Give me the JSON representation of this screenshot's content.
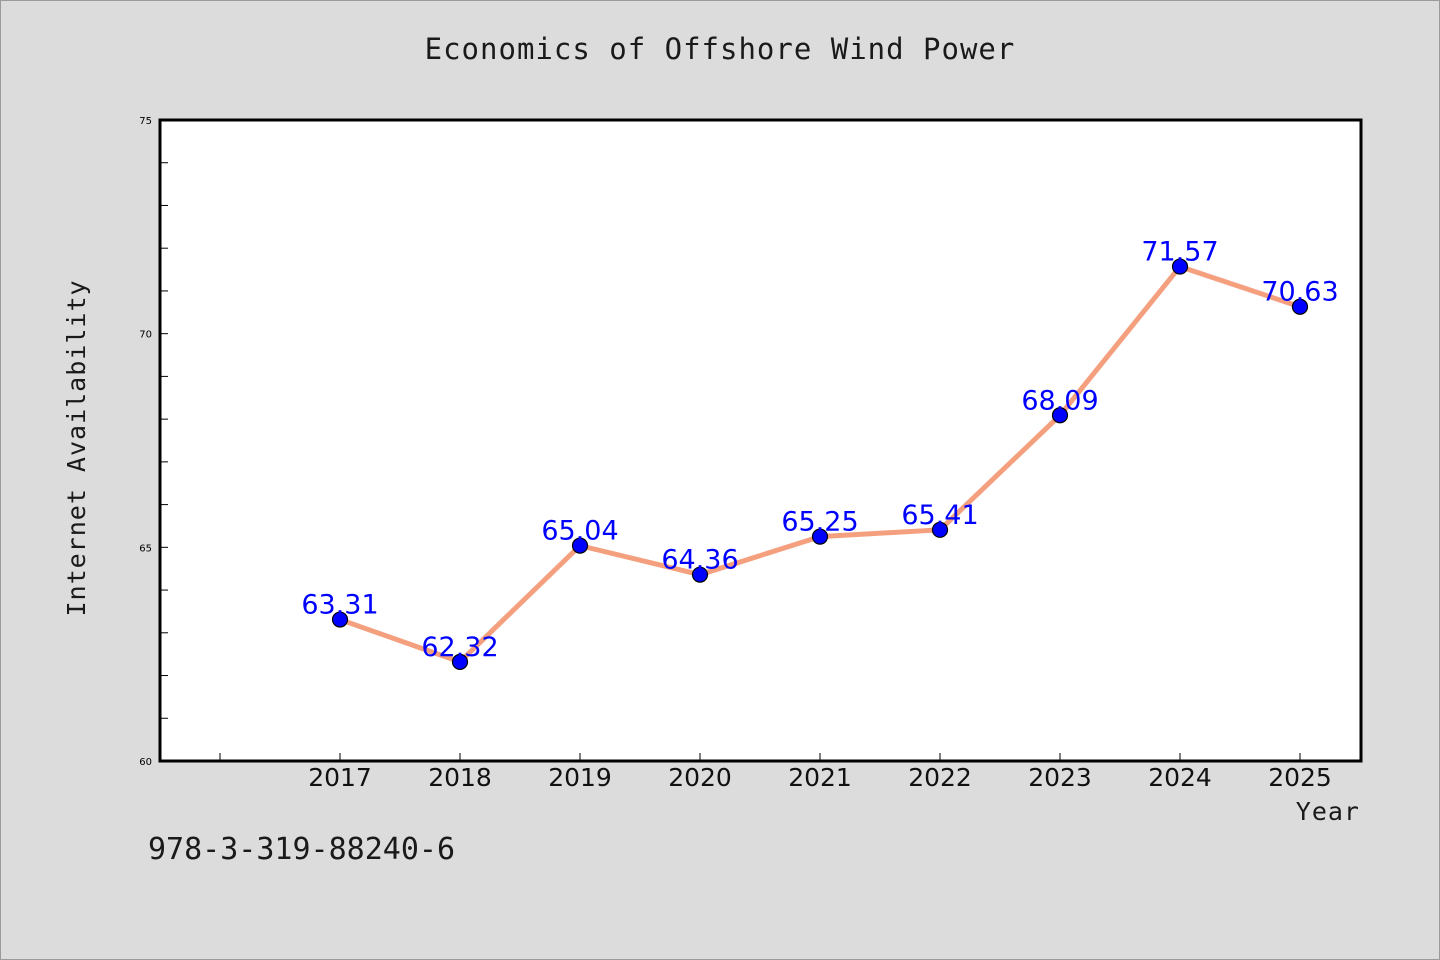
{
  "chart_data": {
    "type": "line",
    "title": "Economics of Offshore Wind Power",
    "xlabel": "Year",
    "ylabel": "Internet Availability",
    "categories": [
      "2017",
      "2018",
      "2019",
      "2020",
      "2021",
      "2022",
      "2023",
      "2024",
      "2025"
    ],
    "values": [
      63.31,
      62.32,
      65.04,
      64.36,
      65.25,
      65.41,
      68.09,
      71.57,
      70.63
    ],
    "data_labels": [
      "63.31",
      "62.32",
      "65.04",
      "64.36",
      "65.25",
      "65.41",
      "68.09",
      "71.57",
      "70.63"
    ],
    "ylim": [
      60,
      75
    ],
    "y_ticks": [
      "60",
      "65",
      "70",
      "75"
    ],
    "grid": false,
    "legend": "none",
    "colors": {
      "line": "#f4a07e",
      "marker": "#0000ff",
      "label": "#0000ff",
      "background": "#dcdcdc",
      "plot_background": "#ffffff"
    }
  },
  "footer_text": "978-3-319-88240-6"
}
